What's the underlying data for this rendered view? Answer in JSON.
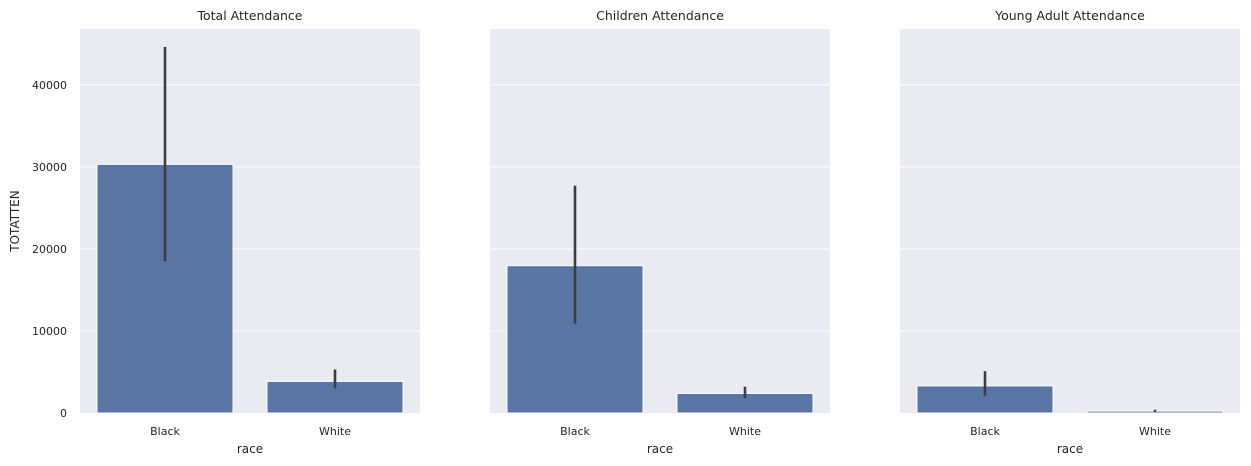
{
  "chart_data": [
    {
      "type": "bar",
      "title": "Total Attendance",
      "xlabel": "race",
      "ylabel": "TOTATTEN",
      "categories": [
        "Black",
        "White"
      ],
      "values": [
        30300,
        3850
      ],
      "error_bars": [
        [
          18500,
          44600
        ],
        [
          3000,
          5300
        ]
      ],
      "ylim": [
        0,
        46800
      ],
      "yticks": [
        "0",
        "10000",
        "20000",
        "30000",
        "40000"
      ],
      "grid": true
    },
    {
      "type": "bar",
      "title": "Children Attendance",
      "xlabel": "race",
      "categories": [
        "Black",
        "White"
      ],
      "values": [
        17950,
        2380
      ],
      "error_bars": [
        [
          10900,
          27700
        ],
        [
          1800,
          3200
        ]
      ],
      "ylim": [
        0,
        46800
      ],
      "grid": true
    },
    {
      "type": "bar",
      "title": "Young Adult Attendance",
      "xlabel": "race",
      "categories": [
        "Black",
        "White"
      ],
      "values": [
        3300,
        230
      ],
      "error_bars": [
        [
          2100,
          5100
        ],
        [
          150,
          400
        ]
      ],
      "ylim": [
        0,
        46800
      ],
      "grid": true
    }
  ],
  "colors": {
    "bar": "#5975a4",
    "panel_bg": "#eaeaf2",
    "grid": "#ffffff",
    "errorbar": "#3d3d3d"
  }
}
